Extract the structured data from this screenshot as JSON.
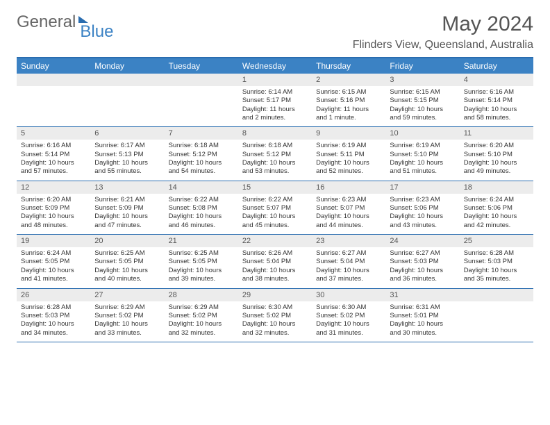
{
  "brand": {
    "part1": "General",
    "part2": "Blue"
  },
  "title": "May 2024",
  "location": "Flinders View, Queensland, Australia",
  "header_bg": "#3b82c4",
  "border_color": "#2a6db0",
  "daynum_bg": "#ececec",
  "text_color": "#333333",
  "weekdays": [
    "Sunday",
    "Monday",
    "Tuesday",
    "Wednesday",
    "Thursday",
    "Friday",
    "Saturday"
  ],
  "weeks": [
    [
      null,
      null,
      null,
      {
        "d": "1",
        "sr": "6:14 AM",
        "ss": "5:17 PM",
        "dl": "11 hours and 2 minutes."
      },
      {
        "d": "2",
        "sr": "6:15 AM",
        "ss": "5:16 PM",
        "dl": "11 hours and 1 minute."
      },
      {
        "d": "3",
        "sr": "6:15 AM",
        "ss": "5:15 PM",
        "dl": "10 hours and 59 minutes."
      },
      {
        "d": "4",
        "sr": "6:16 AM",
        "ss": "5:14 PM",
        "dl": "10 hours and 58 minutes."
      }
    ],
    [
      {
        "d": "5",
        "sr": "6:16 AM",
        "ss": "5:14 PM",
        "dl": "10 hours and 57 minutes."
      },
      {
        "d": "6",
        "sr": "6:17 AM",
        "ss": "5:13 PM",
        "dl": "10 hours and 55 minutes."
      },
      {
        "d": "7",
        "sr": "6:18 AM",
        "ss": "5:12 PM",
        "dl": "10 hours and 54 minutes."
      },
      {
        "d": "8",
        "sr": "6:18 AM",
        "ss": "5:12 PM",
        "dl": "10 hours and 53 minutes."
      },
      {
        "d": "9",
        "sr": "6:19 AM",
        "ss": "5:11 PM",
        "dl": "10 hours and 52 minutes."
      },
      {
        "d": "10",
        "sr": "6:19 AM",
        "ss": "5:10 PM",
        "dl": "10 hours and 51 minutes."
      },
      {
        "d": "11",
        "sr": "6:20 AM",
        "ss": "5:10 PM",
        "dl": "10 hours and 49 minutes."
      }
    ],
    [
      {
        "d": "12",
        "sr": "6:20 AM",
        "ss": "5:09 PM",
        "dl": "10 hours and 48 minutes."
      },
      {
        "d": "13",
        "sr": "6:21 AM",
        "ss": "5:09 PM",
        "dl": "10 hours and 47 minutes."
      },
      {
        "d": "14",
        "sr": "6:22 AM",
        "ss": "5:08 PM",
        "dl": "10 hours and 46 minutes."
      },
      {
        "d": "15",
        "sr": "6:22 AM",
        "ss": "5:07 PM",
        "dl": "10 hours and 45 minutes."
      },
      {
        "d": "16",
        "sr": "6:23 AM",
        "ss": "5:07 PM",
        "dl": "10 hours and 44 minutes."
      },
      {
        "d": "17",
        "sr": "6:23 AM",
        "ss": "5:06 PM",
        "dl": "10 hours and 43 minutes."
      },
      {
        "d": "18",
        "sr": "6:24 AM",
        "ss": "5:06 PM",
        "dl": "10 hours and 42 minutes."
      }
    ],
    [
      {
        "d": "19",
        "sr": "6:24 AM",
        "ss": "5:05 PM",
        "dl": "10 hours and 41 minutes."
      },
      {
        "d": "20",
        "sr": "6:25 AM",
        "ss": "5:05 PM",
        "dl": "10 hours and 40 minutes."
      },
      {
        "d": "21",
        "sr": "6:25 AM",
        "ss": "5:05 PM",
        "dl": "10 hours and 39 minutes."
      },
      {
        "d": "22",
        "sr": "6:26 AM",
        "ss": "5:04 PM",
        "dl": "10 hours and 38 minutes."
      },
      {
        "d": "23",
        "sr": "6:27 AM",
        "ss": "5:04 PM",
        "dl": "10 hours and 37 minutes."
      },
      {
        "d": "24",
        "sr": "6:27 AM",
        "ss": "5:03 PM",
        "dl": "10 hours and 36 minutes."
      },
      {
        "d": "25",
        "sr": "6:28 AM",
        "ss": "5:03 PM",
        "dl": "10 hours and 35 minutes."
      }
    ],
    [
      {
        "d": "26",
        "sr": "6:28 AM",
        "ss": "5:03 PM",
        "dl": "10 hours and 34 minutes."
      },
      {
        "d": "27",
        "sr": "6:29 AM",
        "ss": "5:02 PM",
        "dl": "10 hours and 33 minutes."
      },
      {
        "d": "28",
        "sr": "6:29 AM",
        "ss": "5:02 PM",
        "dl": "10 hours and 32 minutes."
      },
      {
        "d": "29",
        "sr": "6:30 AM",
        "ss": "5:02 PM",
        "dl": "10 hours and 32 minutes."
      },
      {
        "d": "30",
        "sr": "6:30 AM",
        "ss": "5:02 PM",
        "dl": "10 hours and 31 minutes."
      },
      {
        "d": "31",
        "sr": "6:31 AM",
        "ss": "5:01 PM",
        "dl": "10 hours and 30 minutes."
      },
      null
    ]
  ],
  "labels": {
    "sunrise": "Sunrise:",
    "sunset": "Sunset:",
    "daylight": "Daylight:"
  }
}
